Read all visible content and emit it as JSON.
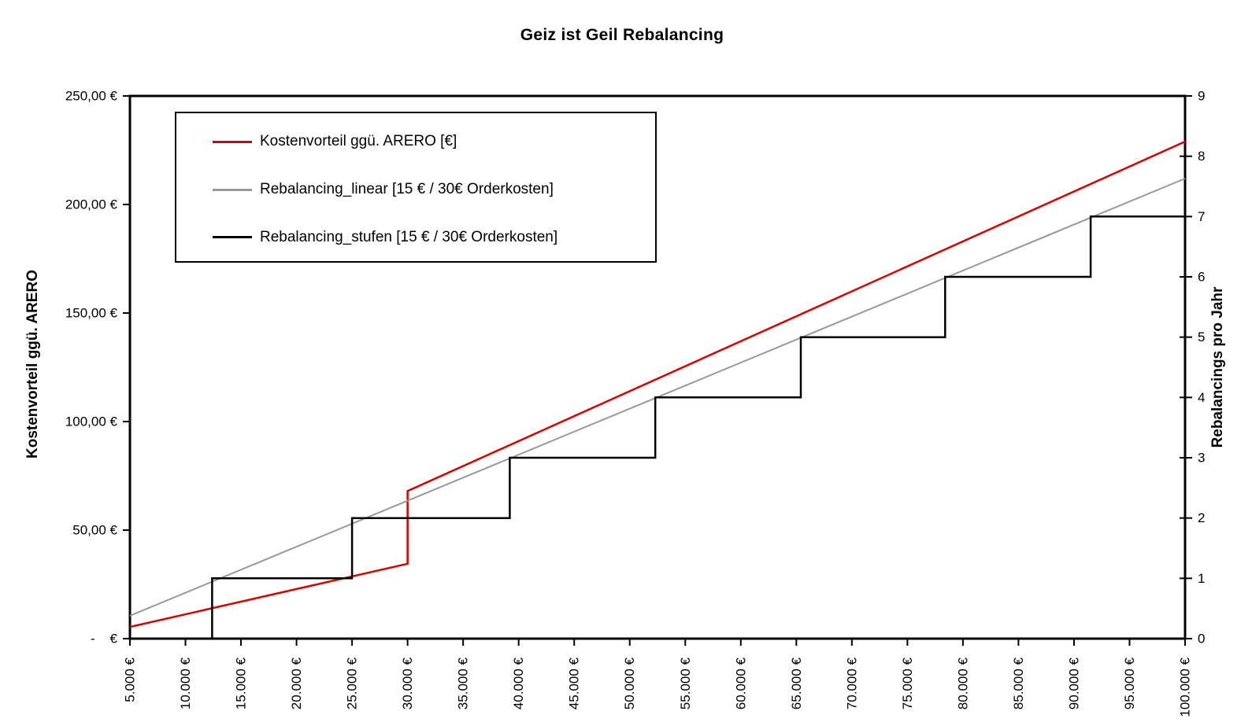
{
  "title": "Geiz ist Geil Rebalancing",
  "chart_data": {
    "type": "line",
    "title": "Geiz ist Geil Rebalancing",
    "grid": false,
    "legend_position": "top-left",
    "x_axis": {
      "range": [
        5000,
        100000
      ],
      "tick_step": 5000,
      "tick_labels": [
        "5.000 €",
        "10.000 €",
        "15.000 €",
        "20.000 €",
        "25.000 €",
        "30.000 €",
        "35.000 €",
        "40.000 €",
        "45.000 €",
        "50.000 €",
        "55.000 €",
        "60.000 €",
        "65.000 €",
        "70.000 €",
        "75.000 €",
        "80.000 €",
        "85.000 €",
        "90.000 €",
        "95.000 €",
        "100.000 €"
      ]
    },
    "y_axis_left": {
      "title": "Kostenvorteil ggü. ARERO",
      "range": [
        0,
        250
      ],
      "tick_step": 50,
      "tick_labels": [
        "-    €",
        "50,00 €",
        "100,00 €",
        "150,00 €",
        "200,00 €",
        "250,00 €"
      ]
    },
    "y_axis_right": {
      "title": "Rebalancings pro Jahr",
      "range": [
        0,
        9
      ],
      "tick_step": 1,
      "tick_labels": [
        "0",
        "1",
        "2",
        "3",
        "4",
        "5",
        "6",
        "7",
        "8",
        "9"
      ]
    },
    "series": [
      {
        "name": "Kostenvorteil ggü. ARERO [€]",
        "color": "#d90000",
        "axis": "left",
        "style": "line",
        "points": [
          [
            5000,
            5.4
          ],
          [
            30000,
            34.5
          ],
          [
            30000,
            68
          ],
          [
            100000,
            229
          ]
        ]
      },
      {
        "name": "Rebalancing_linear [15 € / 30€ Orderkosten]",
        "color": "#999999",
        "axis": "right",
        "style": "line",
        "points": [
          [
            5000,
            0.38
          ],
          [
            100000,
            7.63
          ]
        ]
      },
      {
        "name": "Rebalancing_stufen [15 € / 30€ Orderkosten]",
        "color": "#000000",
        "axis": "right",
        "style": "step",
        "points": [
          [
            5000,
            0
          ],
          [
            12400,
            0
          ],
          [
            12400,
            1
          ],
          [
            25000,
            1
          ],
          [
            25000,
            2
          ],
          [
            39200,
            2
          ],
          [
            39200,
            3
          ],
          [
            52300,
            3
          ],
          [
            52300,
            4
          ],
          [
            65400,
            4
          ],
          [
            65400,
            5
          ],
          [
            78400,
            5
          ],
          [
            78400,
            6
          ],
          [
            91500,
            6
          ],
          [
            91500,
            7
          ],
          [
            100000,
            7
          ]
        ]
      }
    ]
  }
}
